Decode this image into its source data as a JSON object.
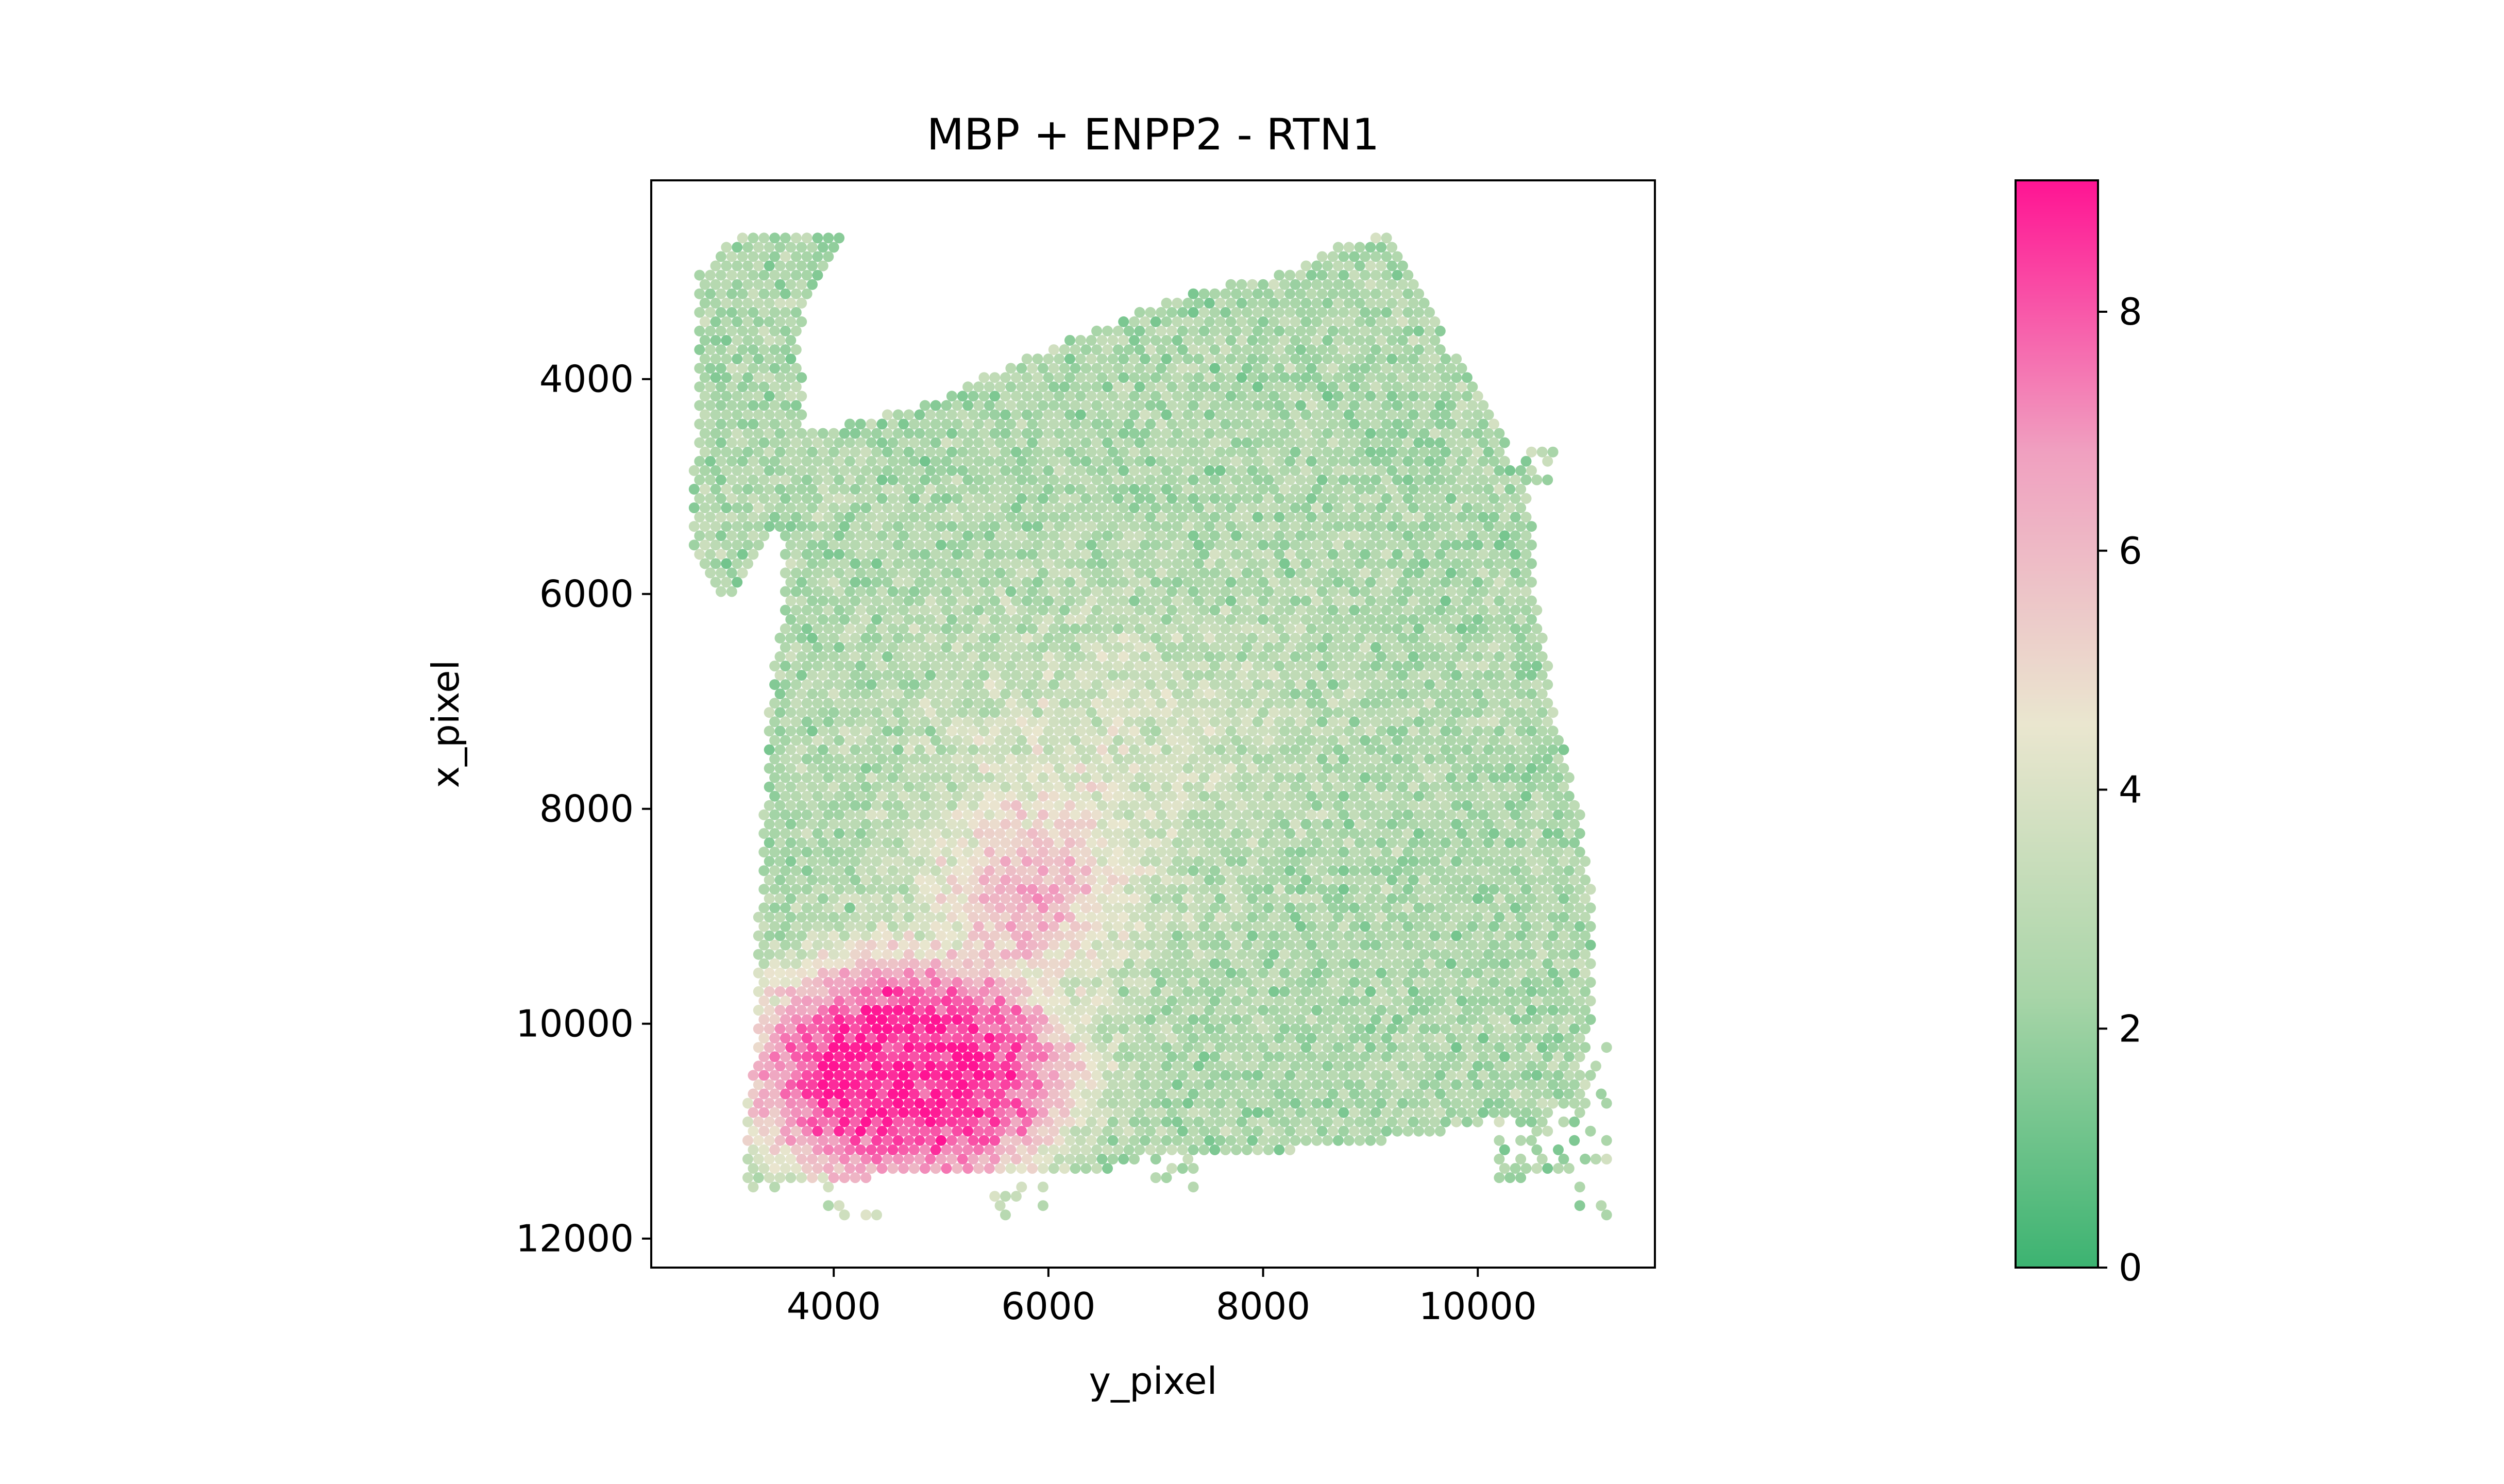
{
  "chart_data": {
    "type": "scatter",
    "title": "MBP + ENPP2 - RTN1",
    "xlabel": "y_pixel",
    "ylabel": "x_pixel",
    "xlim": [
      2300,
      11650
    ],
    "ylim": [
      12270,
      2150
    ],
    "y_inverted": true,
    "x_ticks": [
      4000,
      6000,
      8000,
      10000
    ],
    "y_ticks": [
      4000,
      6000,
      8000,
      10000,
      12000
    ],
    "grid": false,
    "colorbar": {
      "range": [
        0,
        9.1
      ],
      "ticks": [
        0,
        2,
        4,
        6,
        8
      ],
      "colors": [
        "#3cb371",
        "#a8d5a8",
        "#eae6cf",
        "#f0a0c0",
        "#ff1493"
      ]
    },
    "point_spacing": 100,
    "x_range": [
      2700,
      11200
    ],
    "y_range": [
      2600,
      11950
    ],
    "value_scale": [
      0,
      9.1
    ]
  }
}
